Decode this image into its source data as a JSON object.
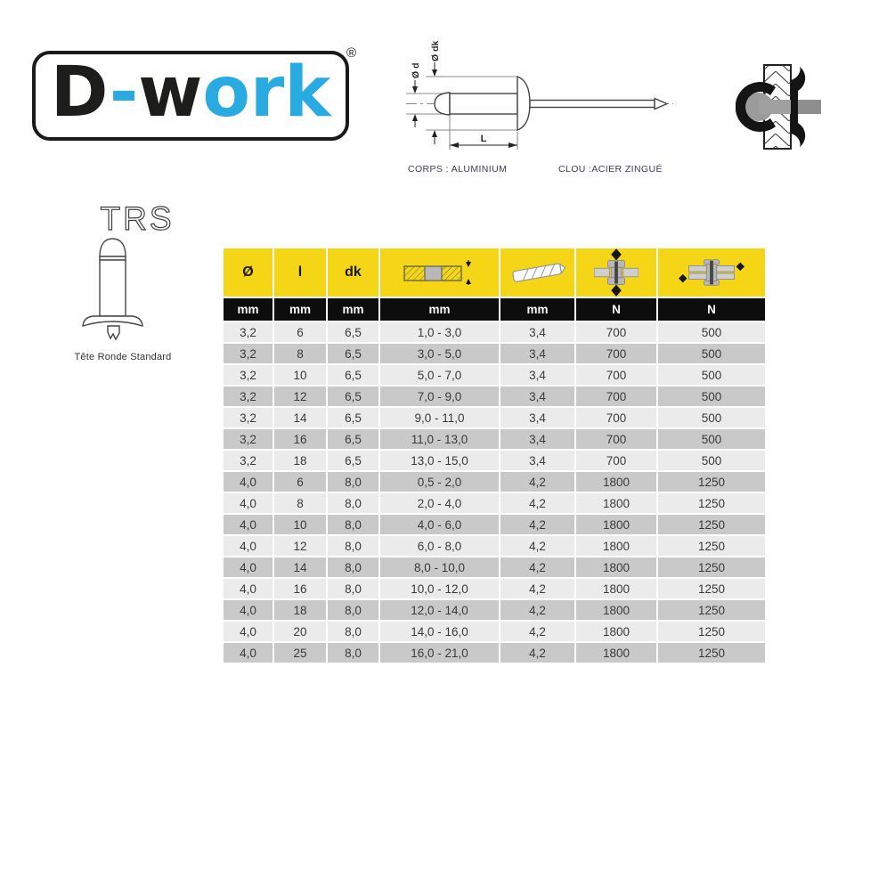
{
  "colors": {
    "yellow": "#f5d617",
    "black_row": "#0d0d0d",
    "row_light": "#ebebeb",
    "row_dark": "#c9c9c9",
    "logo_blue": "#29abe2",
    "ink": "#1d1d1b"
  },
  "logo": {
    "d": "D",
    "hyphen": "-",
    "w": "w",
    "ork": "ork",
    "registered": "®"
  },
  "technical_drawing": {
    "dim_d": "Ø d",
    "dim_dk": "Ø dk",
    "dim_l": "L",
    "body_material": "CORPS : ALUMINIUM",
    "nail_material": "CLOU :ACIER ZINGUÉ"
  },
  "product": {
    "code": "TRS",
    "head_type": "Tête Ronde Standard"
  },
  "table": {
    "columns": [
      {
        "header": "Ø",
        "unit": "mm"
      },
      {
        "header": "l",
        "unit": "mm"
      },
      {
        "header": "dk",
        "unit": "mm"
      },
      {
        "icon": "clamping-range-icon",
        "unit": "mm"
      },
      {
        "icon": "drill-diameter-icon",
        "unit": "mm"
      },
      {
        "icon": "tensile-strength-icon",
        "unit": "N"
      },
      {
        "icon": "shear-strength-icon",
        "unit": "N"
      }
    ],
    "rows": [
      [
        "3,2",
        "6",
        "6,5",
        "1,0 - 3,0",
        "3,4",
        "700",
        "500"
      ],
      [
        "3,2",
        "8",
        "6,5",
        "3,0 - 5,0",
        "3,4",
        "700",
        "500"
      ],
      [
        "3,2",
        "10",
        "6,5",
        "5,0 - 7,0",
        "3,4",
        "700",
        "500"
      ],
      [
        "3,2",
        "12",
        "6,5",
        "7,0 - 9,0",
        "3,4",
        "700",
        "500"
      ],
      [
        "3,2",
        "14",
        "6,5",
        "9,0 - 11,0",
        "3,4",
        "700",
        "500"
      ],
      [
        "3,2",
        "16",
        "6,5",
        "11,0 - 13,0",
        "3,4",
        "700",
        "500"
      ],
      [
        "3,2",
        "18",
        "6,5",
        "13,0 - 15,0",
        "3,4",
        "700",
        "500"
      ],
      [
        "4,0",
        "6",
        "8,0",
        "0,5 - 2,0",
        "4,2",
        "1800",
        "1250"
      ],
      [
        "4,0",
        "8",
        "8,0",
        "2,0 - 4,0",
        "4,2",
        "1800",
        "1250"
      ],
      [
        "4,0",
        "10",
        "8,0",
        "4,0 - 6,0",
        "4,2",
        "1800",
        "1250"
      ],
      [
        "4,0",
        "12",
        "8,0",
        "6,0 - 8,0",
        "4,2",
        "1800",
        "1250"
      ],
      [
        "4,0",
        "14",
        "8,0",
        "8,0 - 10,0",
        "4,2",
        "1800",
        "1250"
      ],
      [
        "4,0",
        "16",
        "8,0",
        "10,0 - 12,0",
        "4,2",
        "1800",
        "1250"
      ],
      [
        "4,0",
        "18",
        "8,0",
        "12,0 - 14,0",
        "4,2",
        "1800",
        "1250"
      ],
      [
        "4,0",
        "20",
        "8,0",
        "14,0 - 16,0",
        "4,2",
        "1800",
        "1250"
      ],
      [
        "4,0",
        "25",
        "8,0",
        "16,0 - 21,0",
        "4,2",
        "1800",
        "1250"
      ]
    ]
  }
}
